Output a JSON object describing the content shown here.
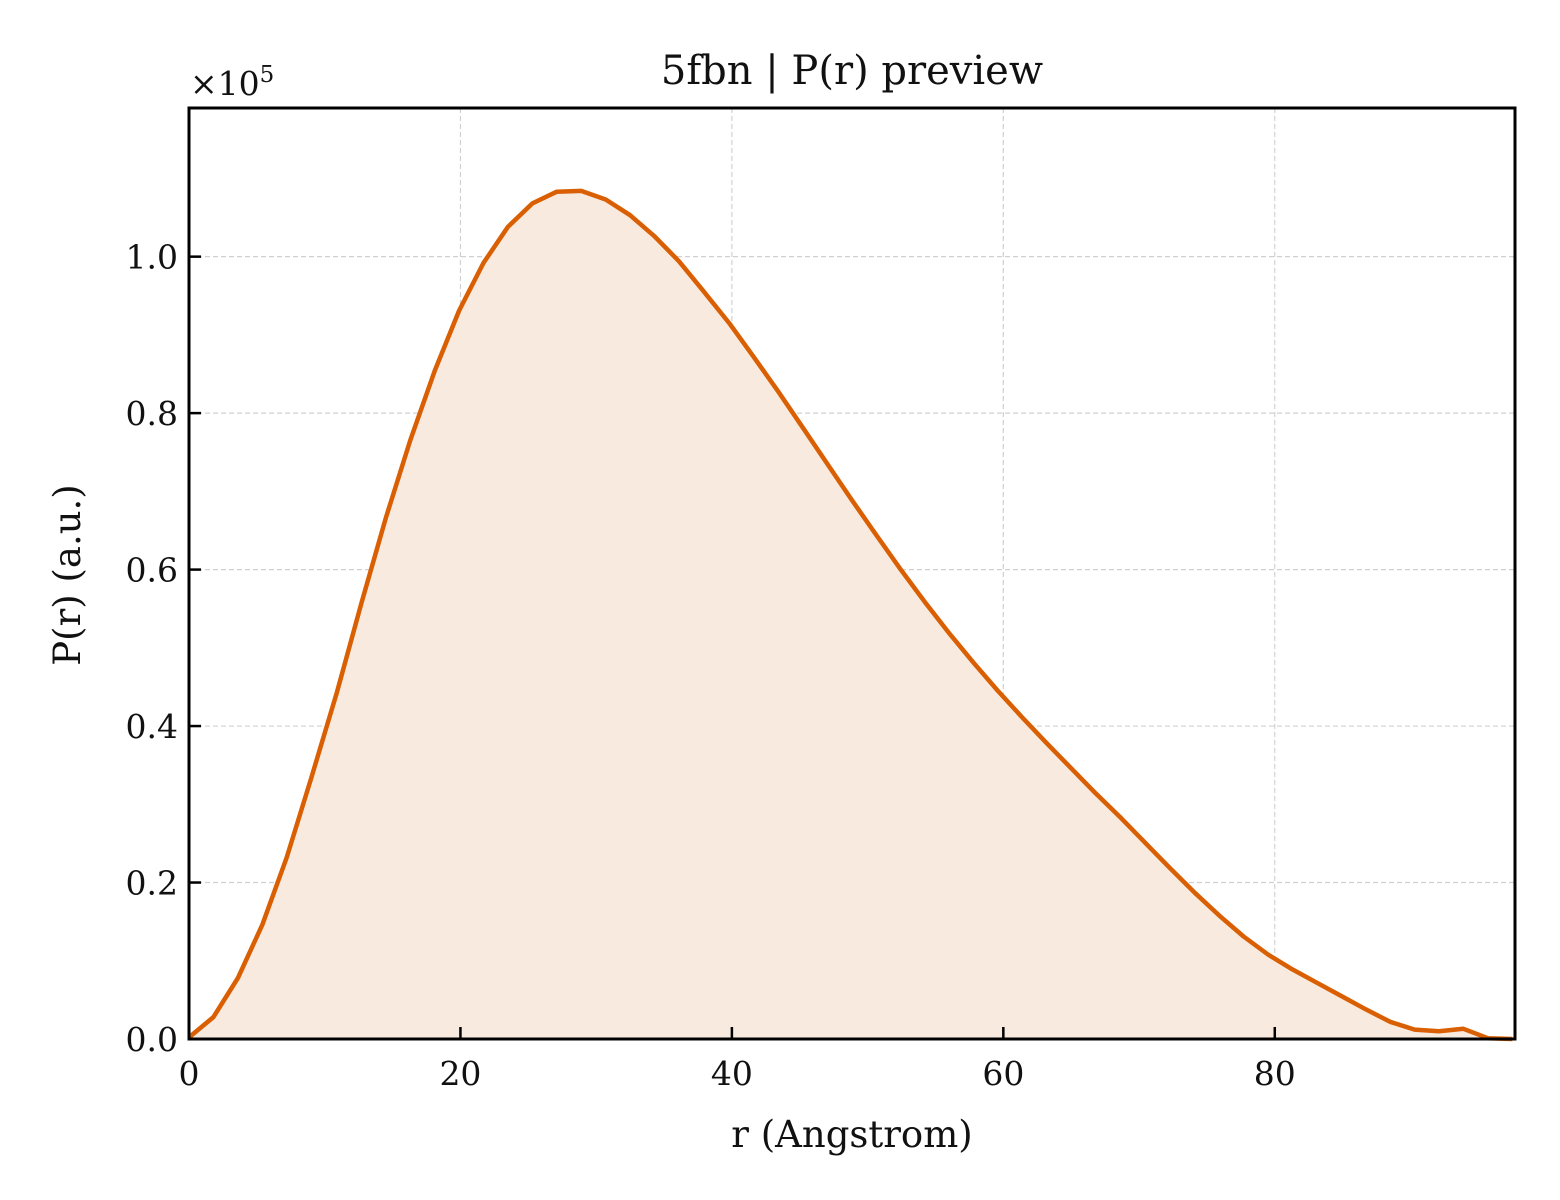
{
  "chart_data": {
    "type": "area",
    "title": "5fbn | P(r) preview",
    "xlabel": "r (Angstrom)",
    "ylabel": "P(r) (a.u.)",
    "y_multiplier_text": "×10",
    "y_multiplier_exp": "5",
    "xlim": [
      0,
      97.7
    ],
    "ylim": [
      0,
      1.19
    ],
    "xticks": [
      0,
      20,
      40,
      60,
      80
    ],
    "xtick_labels": [
      "0",
      "20",
      "40",
      "60",
      "80"
    ],
    "yticks": [
      0.0,
      0.2,
      0.4,
      0.6,
      0.8,
      1.0
    ],
    "ytick_labels": [
      "0.0",
      "0.2",
      "0.4",
      "0.6",
      "0.8",
      "1.0"
    ],
    "grid": true,
    "line_color": "#d95f02",
    "fill_color": "#f8eadf",
    "series": [
      {
        "x": [
          0,
          1.8,
          3.6,
          5.4,
          7.2,
          9.0,
          10.9,
          12.7,
          14.5,
          16.3,
          18.1,
          19.9,
          21.7,
          23.5,
          25.3,
          27.1,
          28.9,
          30.7,
          32.5,
          34.3,
          36.1,
          37.9,
          39.8,
          41.6,
          43.4,
          45.2,
          47.0,
          48.8,
          50.6,
          52.4,
          54.2,
          56.0,
          57.8,
          59.6,
          61.4,
          63.2,
          65.0,
          66.8,
          68.7,
          70.5,
          72.3,
          74.1,
          75.9,
          77.7,
          79.5,
          81.3,
          83.1,
          84.9,
          86.7,
          88.5,
          90.3,
          92.1,
          93.9,
          95.7,
          97.5
        ],
        "y": [
          0.002,
          0.028,
          0.078,
          0.146,
          0.232,
          0.333,
          0.443,
          0.557,
          0.666,
          0.765,
          0.854,
          0.931,
          0.992,
          1.038,
          1.068,
          1.083,
          1.084,
          1.073,
          1.053,
          1.026,
          0.994,
          0.956,
          0.915,
          0.872,
          0.828,
          0.782,
          0.736,
          0.69,
          0.645,
          0.601,
          0.559,
          0.519,
          0.481,
          0.445,
          0.411,
          0.378,
          0.346,
          0.314,
          0.282,
          0.25,
          0.218,
          0.187,
          0.158,
          0.131,
          0.108,
          0.089,
          0.072,
          0.055,
          0.038,
          0.022,
          0.012,
          0.01,
          0.013,
          0.001,
          0.0
        ]
      }
    ]
  }
}
